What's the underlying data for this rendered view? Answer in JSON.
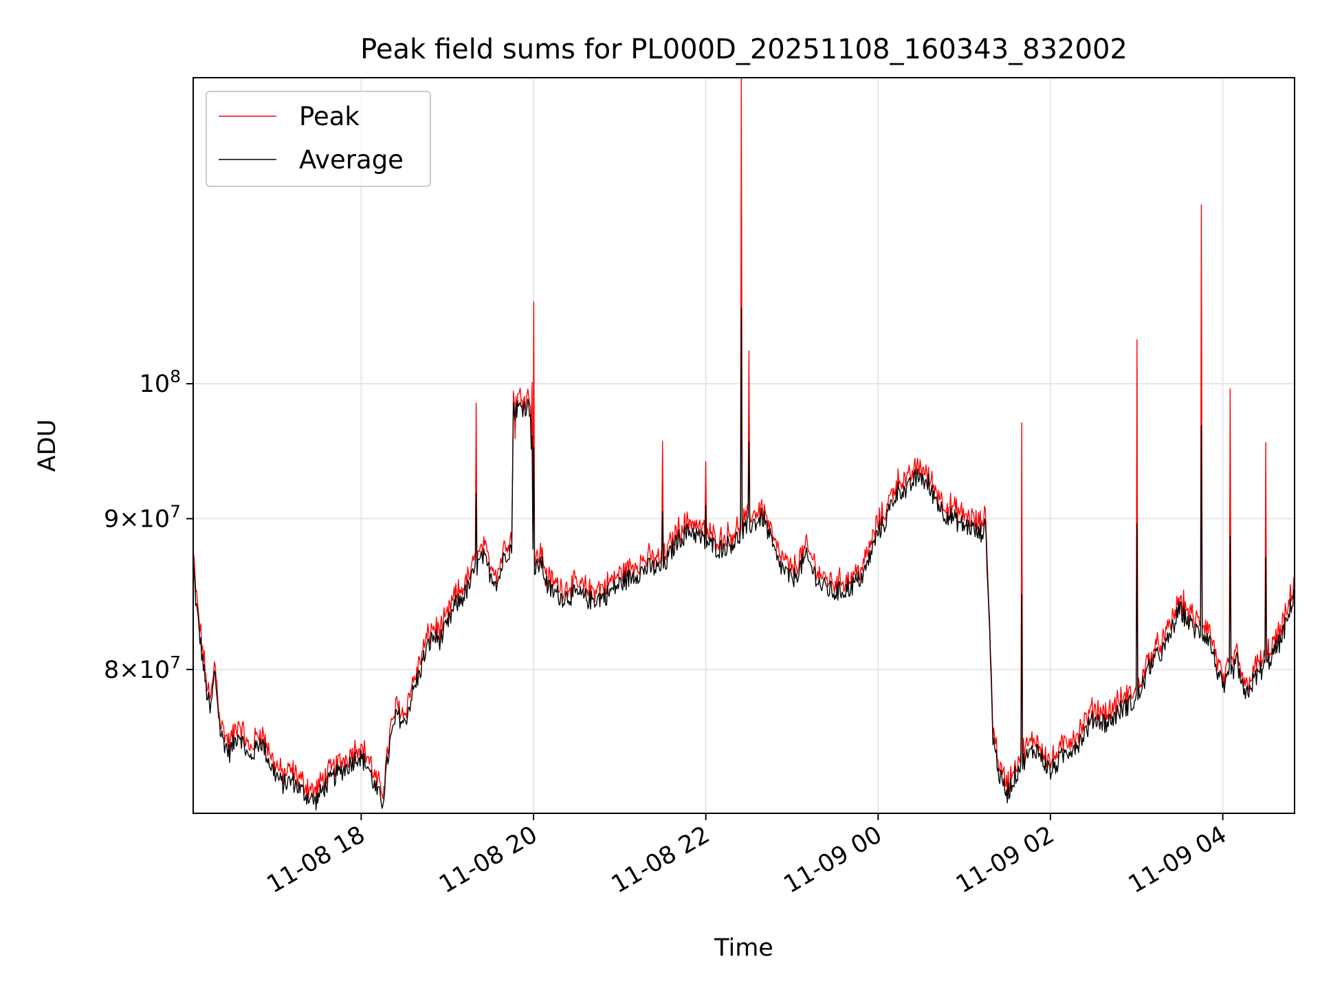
{
  "chart_data": {
    "type": "line",
    "title": "Peak field sums for PL000D_20251108_160343_832002",
    "xlabel": "Time",
    "ylabel": "ADU",
    "yscale": "log",
    "ylim": [
      71500000,
      127000000
    ],
    "xlim": [
      "2025-11-08 16:03",
      "2025-11-09 04:50"
    ],
    "grid": true,
    "legend_position": "upper left",
    "x_ticks": [
      {
        "value": "2025-11-08 18:00",
        "label": "11-08 18"
      },
      {
        "value": "2025-11-08 20:00",
        "label": "11-08 20"
      },
      {
        "value": "2025-11-08 22:00",
        "label": "11-08 22"
      },
      {
        "value": "2025-11-09 00:00",
        "label": "11-09 00"
      },
      {
        "value": "2025-11-09 02:00",
        "label": "11-09 02"
      },
      {
        "value": "2025-11-09 04:00",
        "label": "11-09 04"
      }
    ],
    "y_ticks": [
      {
        "value": 80000000,
        "mant": "8",
        "exp": "7"
      },
      {
        "value": 90000000,
        "mant": "9",
        "exp": "7"
      },
      {
        "value": 100000000,
        "mant": "",
        "exp": "8"
      }
    ],
    "series": [
      {
        "name": "Peak",
        "color": "#ff0000",
        "points": [
          [
            "2025-11-08 16:03",
            87700000
          ],
          [
            "2025-11-08 16:05",
            85000000
          ],
          [
            "2025-11-08 16:08",
            82500000
          ],
          [
            "2025-11-08 16:12",
            79500000
          ],
          [
            "2025-11-08 16:15",
            78000000
          ],
          [
            "2025-11-08 16:18",
            80600000
          ],
          [
            "2025-11-08 16:22",
            76800000
          ],
          [
            "2025-11-08 16:28",
            75600000
          ],
          [
            "2025-11-08 16:35",
            76900000
          ],
          [
            "2025-11-08 16:42",
            75200000
          ],
          [
            "2025-11-08 16:50",
            76400000
          ],
          [
            "2025-11-08 16:58",
            74700000
          ],
          [
            "2025-11-08 17:05",
            73800000
          ],
          [
            "2025-11-08 17:12",
            74000000
          ],
          [
            "2025-11-08 17:20",
            73300000
          ],
          [
            "2025-11-08 17:28",
            72800000
          ],
          [
            "2025-11-08 17:35",
            73700000
          ],
          [
            "2025-11-08 17:42",
            74300000
          ],
          [
            "2025-11-08 17:50",
            74800000
          ],
          [
            "2025-11-08 17:58",
            75500000
          ],
          [
            "2025-11-08 18:05",
            74800000
          ],
          [
            "2025-11-08 18:10",
            73500000
          ],
          [
            "2025-11-08 18:15",
            72800000
          ],
          [
            "2025-11-08 18:20",
            76200000
          ],
          [
            "2025-11-08 18:25",
            78000000
          ],
          [
            "2025-11-08 18:30",
            77300000
          ],
          [
            "2025-11-08 18:35",
            79000000
          ],
          [
            "2025-11-08 18:40",
            80300000
          ],
          [
            "2025-11-08 18:45",
            81900000
          ],
          [
            "2025-11-08 18:50",
            82800000
          ],
          [
            "2025-11-08 18:55",
            82600000
          ],
          [
            "2025-11-08 19:00",
            83500000
          ],
          [
            "2025-11-08 19:05",
            84800000
          ],
          [
            "2025-11-08 19:10",
            85300000
          ],
          [
            "2025-11-08 19:15",
            86100000
          ],
          [
            "2025-11-08 19:20",
            87400000
          ],
          [
            "2025-11-08 19:25",
            88100000
          ],
          [
            "2025-11-08 19:30",
            87000000
          ],
          [
            "2025-11-08 19:35",
            86400000
          ],
          [
            "2025-11-08 19:40",
            88300000
          ],
          [
            "2025-11-08 19:45",
            88900000
          ],
          [
            "2025-11-08 19:46",
            99500000
          ],
          [
            "2025-11-08 19:48",
            99000000
          ],
          [
            "2025-11-08 19:52",
            99100000
          ],
          [
            "2025-11-08 19:55",
            99200000
          ],
          [
            "2025-11-08 19:58",
            99000000
          ],
          [
            "2025-11-08 20:00",
            86800000
          ],
          [
            "2025-11-08 20:05",
            87900000
          ],
          [
            "2025-11-08 20:10",
            86000000
          ],
          [
            "2025-11-08 20:20",
            85400000
          ],
          [
            "2025-11-08 20:30",
            85600000
          ],
          [
            "2025-11-08 20:40",
            85200000
          ],
          [
            "2025-11-08 20:50",
            85500000
          ],
          [
            "2025-11-08 21:00",
            86300000
          ],
          [
            "2025-11-08 21:10",
            86900000
          ],
          [
            "2025-11-08 21:20",
            87400000
          ],
          [
            "2025-11-08 21:30",
            87300000
          ],
          [
            "2025-11-08 21:40",
            89300000
          ],
          [
            "2025-11-08 21:50",
            90000000
          ],
          [
            "2025-11-08 22:00",
            89100000
          ],
          [
            "2025-11-08 22:10",
            88700000
          ],
          [
            "2025-11-08 22:20",
            89200000
          ],
          [
            "2025-11-08 22:30",
            90300000
          ],
          [
            "2025-11-08 22:40",
            90900000
          ],
          [
            "2025-11-08 22:50",
            87800000
          ],
          [
            "2025-11-08 23:00",
            86500000
          ],
          [
            "2025-11-08 23:10",
            88100000
          ],
          [
            "2025-11-08 23:20",
            86200000
          ],
          [
            "2025-11-08 23:30",
            85700000
          ],
          [
            "2025-11-08 23:40",
            86000000
          ],
          [
            "2025-11-08 23:50",
            86900000
          ],
          [
            "2025-11-09 00:00",
            89900000
          ],
          [
            "2025-11-09 00:05",
            90600000
          ],
          [
            "2025-11-09 00:10",
            92100000
          ],
          [
            "2025-11-09 00:15",
            93000000
          ],
          [
            "2025-11-09 00:20",
            92700000
          ],
          [
            "2025-11-09 00:25",
            93600000
          ],
          [
            "2025-11-09 00:30",
            93900000
          ],
          [
            "2025-11-09 00:35",
            93000000
          ],
          [
            "2025-11-09 00:40",
            92300000
          ],
          [
            "2025-11-09 00:45",
            91300000
          ],
          [
            "2025-11-09 00:50",
            91000000
          ],
          [
            "2025-11-09 00:55",
            90600000
          ],
          [
            "2025-11-09 01:00",
            90300000
          ],
          [
            "2025-11-09 01:05",
            90200000
          ],
          [
            "2025-11-09 01:10",
            89700000
          ],
          [
            "2025-11-09 01:15",
            90200000
          ],
          [
            "2025-11-09 01:20",
            76500000
          ],
          [
            "2025-11-09 01:25",
            74100000
          ],
          [
            "2025-11-09 01:30",
            73300000
          ],
          [
            "2025-11-09 01:40",
            75100000
          ],
          [
            "2025-11-09 01:50",
            75900000
          ],
          [
            "2025-11-09 02:00",
            74500000
          ],
          [
            "2025-11-09 02:10",
            75600000
          ],
          [
            "2025-11-09 02:20",
            76300000
          ],
          [
            "2025-11-09 02:30",
            77700000
          ],
          [
            "2025-11-09 02:40",
            77400000
          ],
          [
            "2025-11-09 02:50",
            78300000
          ],
          [
            "2025-11-09 03:00",
            78800000
          ],
          [
            "2025-11-09 03:10",
            81100000
          ],
          [
            "2025-11-09 03:20",
            82100000
          ],
          [
            "2025-11-09 03:30",
            84600000
          ],
          [
            "2025-11-09 03:40",
            83300000
          ],
          [
            "2025-11-09 03:50",
            82800000
          ],
          [
            "2025-11-09 04:00",
            79400000
          ],
          [
            "2025-11-09 04:05",
            80300000
          ],
          [
            "2025-11-09 04:10",
            81200000
          ],
          [
            "2025-11-09 04:15",
            78900000
          ],
          [
            "2025-11-09 04:20",
            79800000
          ],
          [
            "2025-11-09 04:25",
            80500000
          ],
          [
            "2025-11-09 04:30",
            81000000
          ],
          [
            "2025-11-09 04:35",
            81700000
          ],
          [
            "2025-11-09 04:40",
            82500000
          ],
          [
            "2025-11-09 04:45",
            83800000
          ],
          [
            "2025-11-09 04:50",
            85900000
          ]
        ],
        "spikes": [
          [
            "2025-11-08 19:20",
            98500000
          ],
          [
            "2025-11-08 19:47",
            95800000
          ],
          [
            "2025-11-08 19:59",
            100100000
          ],
          [
            "2025-11-08 20:00",
            106600000
          ],
          [
            "2025-11-08 21:30",
            95600000
          ],
          [
            "2025-11-08 22:00",
            94100000
          ],
          [
            "2025-11-08 22:25",
            127000000
          ],
          [
            "2025-11-08 22:30",
            102600000
          ],
          [
            "2025-11-09 00:35",
            93700000
          ],
          [
            "2025-11-09 01:40",
            97000000
          ],
          [
            "2025-11-09 03:00",
            103500000
          ],
          [
            "2025-11-09 03:45",
            115000000
          ],
          [
            "2025-11-09 04:05",
            99600000
          ],
          [
            "2025-11-09 04:30",
            95500000
          ]
        ]
      },
      {
        "name": "Average",
        "color": "#000000"
      }
    ]
  }
}
